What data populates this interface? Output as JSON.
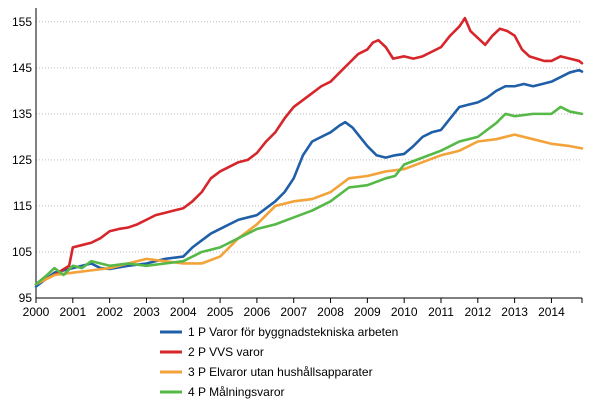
{
  "chart_data": {
    "type": "line",
    "title": "",
    "xlabel": "",
    "ylabel": "",
    "xlim": [
      2000,
      2014.83
    ],
    "ylim": [
      95,
      158
    ],
    "y_ticks": [
      95,
      105,
      115,
      125,
      135,
      145,
      155
    ],
    "x_ticks": [
      2000,
      2001,
      2002,
      2003,
      2004,
      2005,
      2006,
      2007,
      2008,
      2009,
      2010,
      2011,
      2012,
      2013,
      2014
    ],
    "grid": "horizontal",
    "legend_position": "bottom",
    "series": [
      {
        "name": "1 P Varor för byggnadstekniska arbeten",
        "color": "#1f5fa8",
        "points": [
          [
            2000,
            97.5
          ],
          [
            2000.25,
            99
          ],
          [
            2000.5,
            100.5
          ],
          [
            2000.75,
            101
          ],
          [
            2001,
            101.5
          ],
          [
            2001.25,
            102
          ],
          [
            2001.5,
            102.5
          ],
          [
            2001.75,
            101.5
          ],
          [
            2002,
            101.3
          ],
          [
            2002.5,
            102
          ],
          [
            2003,
            102.5
          ],
          [
            2003.5,
            103.5
          ],
          [
            2004,
            104
          ],
          [
            2004.25,
            106
          ],
          [
            2004.5,
            107.5
          ],
          [
            2004.75,
            109
          ],
          [
            2005,
            110
          ],
          [
            2005.5,
            112
          ],
          [
            2006,
            113
          ],
          [
            2006.5,
            116
          ],
          [
            2006.75,
            118
          ],
          [
            2007,
            121
          ],
          [
            2007.25,
            126
          ],
          [
            2007.5,
            129
          ],
          [
            2007.75,
            130
          ],
          [
            2008,
            131
          ],
          [
            2008.25,
            132.5
          ],
          [
            2008.4,
            133.2
          ],
          [
            2008.6,
            132
          ],
          [
            2008.8,
            130
          ],
          [
            2009,
            128
          ],
          [
            2009.25,
            126
          ],
          [
            2009.5,
            125.5
          ],
          [
            2009.75,
            126
          ],
          [
            2010,
            126.3
          ],
          [
            2010.25,
            128
          ],
          [
            2010.5,
            130
          ],
          [
            2010.75,
            131
          ],
          [
            2011,
            131.5
          ],
          [
            2011.25,
            134
          ],
          [
            2011.5,
            136.5
          ],
          [
            2011.75,
            137
          ],
          [
            2012,
            137.5
          ],
          [
            2012.25,
            138.5
          ],
          [
            2012.5,
            140
          ],
          [
            2012.75,
            141
          ],
          [
            2013,
            141
          ],
          [
            2013.25,
            141.5
          ],
          [
            2013.5,
            141
          ],
          [
            2013.75,
            141.5
          ],
          [
            2014,
            142
          ],
          [
            2014.25,
            143
          ],
          [
            2014.5,
            144
          ],
          [
            2014.75,
            144.5
          ],
          [
            2014.83,
            144.2
          ]
        ]
      },
      {
        "name": "2 P VVS varor",
        "color": "#d7262b",
        "points": [
          [
            2000,
            98
          ],
          [
            2000.5,
            100
          ],
          [
            2000.9,
            102
          ],
          [
            2001,
            106
          ],
          [
            2001.25,
            106.5
          ],
          [
            2001.5,
            107
          ],
          [
            2001.75,
            108
          ],
          [
            2002,
            109.5
          ],
          [
            2002.25,
            110
          ],
          [
            2002.5,
            110.3
          ],
          [
            2002.75,
            111
          ],
          [
            2003,
            112
          ],
          [
            2003.25,
            113
          ],
          [
            2003.5,
            113.5
          ],
          [
            2003.75,
            114
          ],
          [
            2004,
            114.5
          ],
          [
            2004.25,
            116
          ],
          [
            2004.5,
            118
          ],
          [
            2004.75,
            121
          ],
          [
            2005,
            122.5
          ],
          [
            2005.25,
            123.5
          ],
          [
            2005.5,
            124.5
          ],
          [
            2005.75,
            125
          ],
          [
            2006,
            126.5
          ],
          [
            2006.25,
            129
          ],
          [
            2006.5,
            131
          ],
          [
            2006.75,
            134
          ],
          [
            2007,
            136.5
          ],
          [
            2007.25,
            138
          ],
          [
            2007.5,
            139.5
          ],
          [
            2007.75,
            141
          ],
          [
            2008,
            142
          ],
          [
            2008.25,
            144
          ],
          [
            2008.5,
            146
          ],
          [
            2008.75,
            148
          ],
          [
            2009,
            149
          ],
          [
            2009.15,
            150.5
          ],
          [
            2009.3,
            151
          ],
          [
            2009.5,
            149.5
          ],
          [
            2009.7,
            147
          ],
          [
            2010,
            147.5
          ],
          [
            2010.25,
            147
          ],
          [
            2010.5,
            147.5
          ],
          [
            2010.75,
            148.5
          ],
          [
            2011,
            149.5
          ],
          [
            2011.25,
            152
          ],
          [
            2011.5,
            154
          ],
          [
            2011.65,
            155.8
          ],
          [
            2011.8,
            153
          ],
          [
            2012,
            151.5
          ],
          [
            2012.2,
            150
          ],
          [
            2012.4,
            152
          ],
          [
            2012.6,
            153.5
          ],
          [
            2012.8,
            153
          ],
          [
            2013,
            152
          ],
          [
            2013.2,
            149
          ],
          [
            2013.4,
            147.5
          ],
          [
            2013.6,
            147
          ],
          [
            2013.8,
            146.5
          ],
          [
            2014,
            146.5
          ],
          [
            2014.25,
            147.5
          ],
          [
            2014.5,
            147
          ],
          [
            2014.75,
            146.5
          ],
          [
            2014.83,
            146
          ]
        ]
      },
      {
        "name": "3 P Elvaror utan hushållsapparater",
        "color": "#f3a33a",
        "points": [
          [
            2000,
            98
          ],
          [
            2000.5,
            100
          ],
          [
            2001,
            100.5
          ],
          [
            2001.5,
            101
          ],
          [
            2002,
            101.5
          ],
          [
            2002.5,
            102.5
          ],
          [
            2003,
            103.5
          ],
          [
            2003.5,
            103
          ],
          [
            2004,
            102.5
          ],
          [
            2004.5,
            102.5
          ],
          [
            2005,
            104
          ],
          [
            2005.5,
            108
          ],
          [
            2006,
            111
          ],
          [
            2006.5,
            115
          ],
          [
            2007,
            116
          ],
          [
            2007.5,
            116.5
          ],
          [
            2008,
            118
          ],
          [
            2008.5,
            121
          ],
          [
            2009,
            121.5
          ],
          [
            2009.5,
            122.5
          ],
          [
            2010,
            123
          ],
          [
            2010.5,
            124.5
          ],
          [
            2011,
            126
          ],
          [
            2011.5,
            127
          ],
          [
            2012,
            129
          ],
          [
            2012.5,
            129.5
          ],
          [
            2013,
            130.5
          ],
          [
            2013.5,
            129.5
          ],
          [
            2014,
            128.5
          ],
          [
            2014.5,
            128
          ],
          [
            2014.83,
            127.5
          ]
        ]
      },
      {
        "name": "4 P Målningsvaror",
        "color": "#56b947",
        "points": [
          [
            2000,
            98
          ],
          [
            2000.3,
            100
          ],
          [
            2000.5,
            101.5
          ],
          [
            2000.75,
            100
          ],
          [
            2001,
            102
          ],
          [
            2001.25,
            101.5
          ],
          [
            2001.5,
            103
          ],
          [
            2002,
            102
          ],
          [
            2002.5,
            102.5
          ],
          [
            2003,
            102
          ],
          [
            2003.5,
            102.5
          ],
          [
            2004,
            103
          ],
          [
            2004.5,
            105
          ],
          [
            2005,
            106
          ],
          [
            2005.5,
            108
          ],
          [
            2006,
            110
          ],
          [
            2006.5,
            111
          ],
          [
            2007,
            112.5
          ],
          [
            2007.5,
            114
          ],
          [
            2008,
            116
          ],
          [
            2008.5,
            119
          ],
          [
            2009,
            119.5
          ],
          [
            2009.5,
            121
          ],
          [
            2009.75,
            121.5
          ],
          [
            2010,
            124
          ],
          [
            2010.5,
            125.5
          ],
          [
            2011,
            127
          ],
          [
            2011.5,
            129
          ],
          [
            2012,
            130
          ],
          [
            2012.5,
            133
          ],
          [
            2012.75,
            135
          ],
          [
            2013,
            134.5
          ],
          [
            2013.5,
            135
          ],
          [
            2014,
            135
          ],
          [
            2014.25,
            136.5
          ],
          [
            2014.5,
            135.5
          ],
          [
            2014.83,
            135
          ]
        ]
      }
    ]
  }
}
